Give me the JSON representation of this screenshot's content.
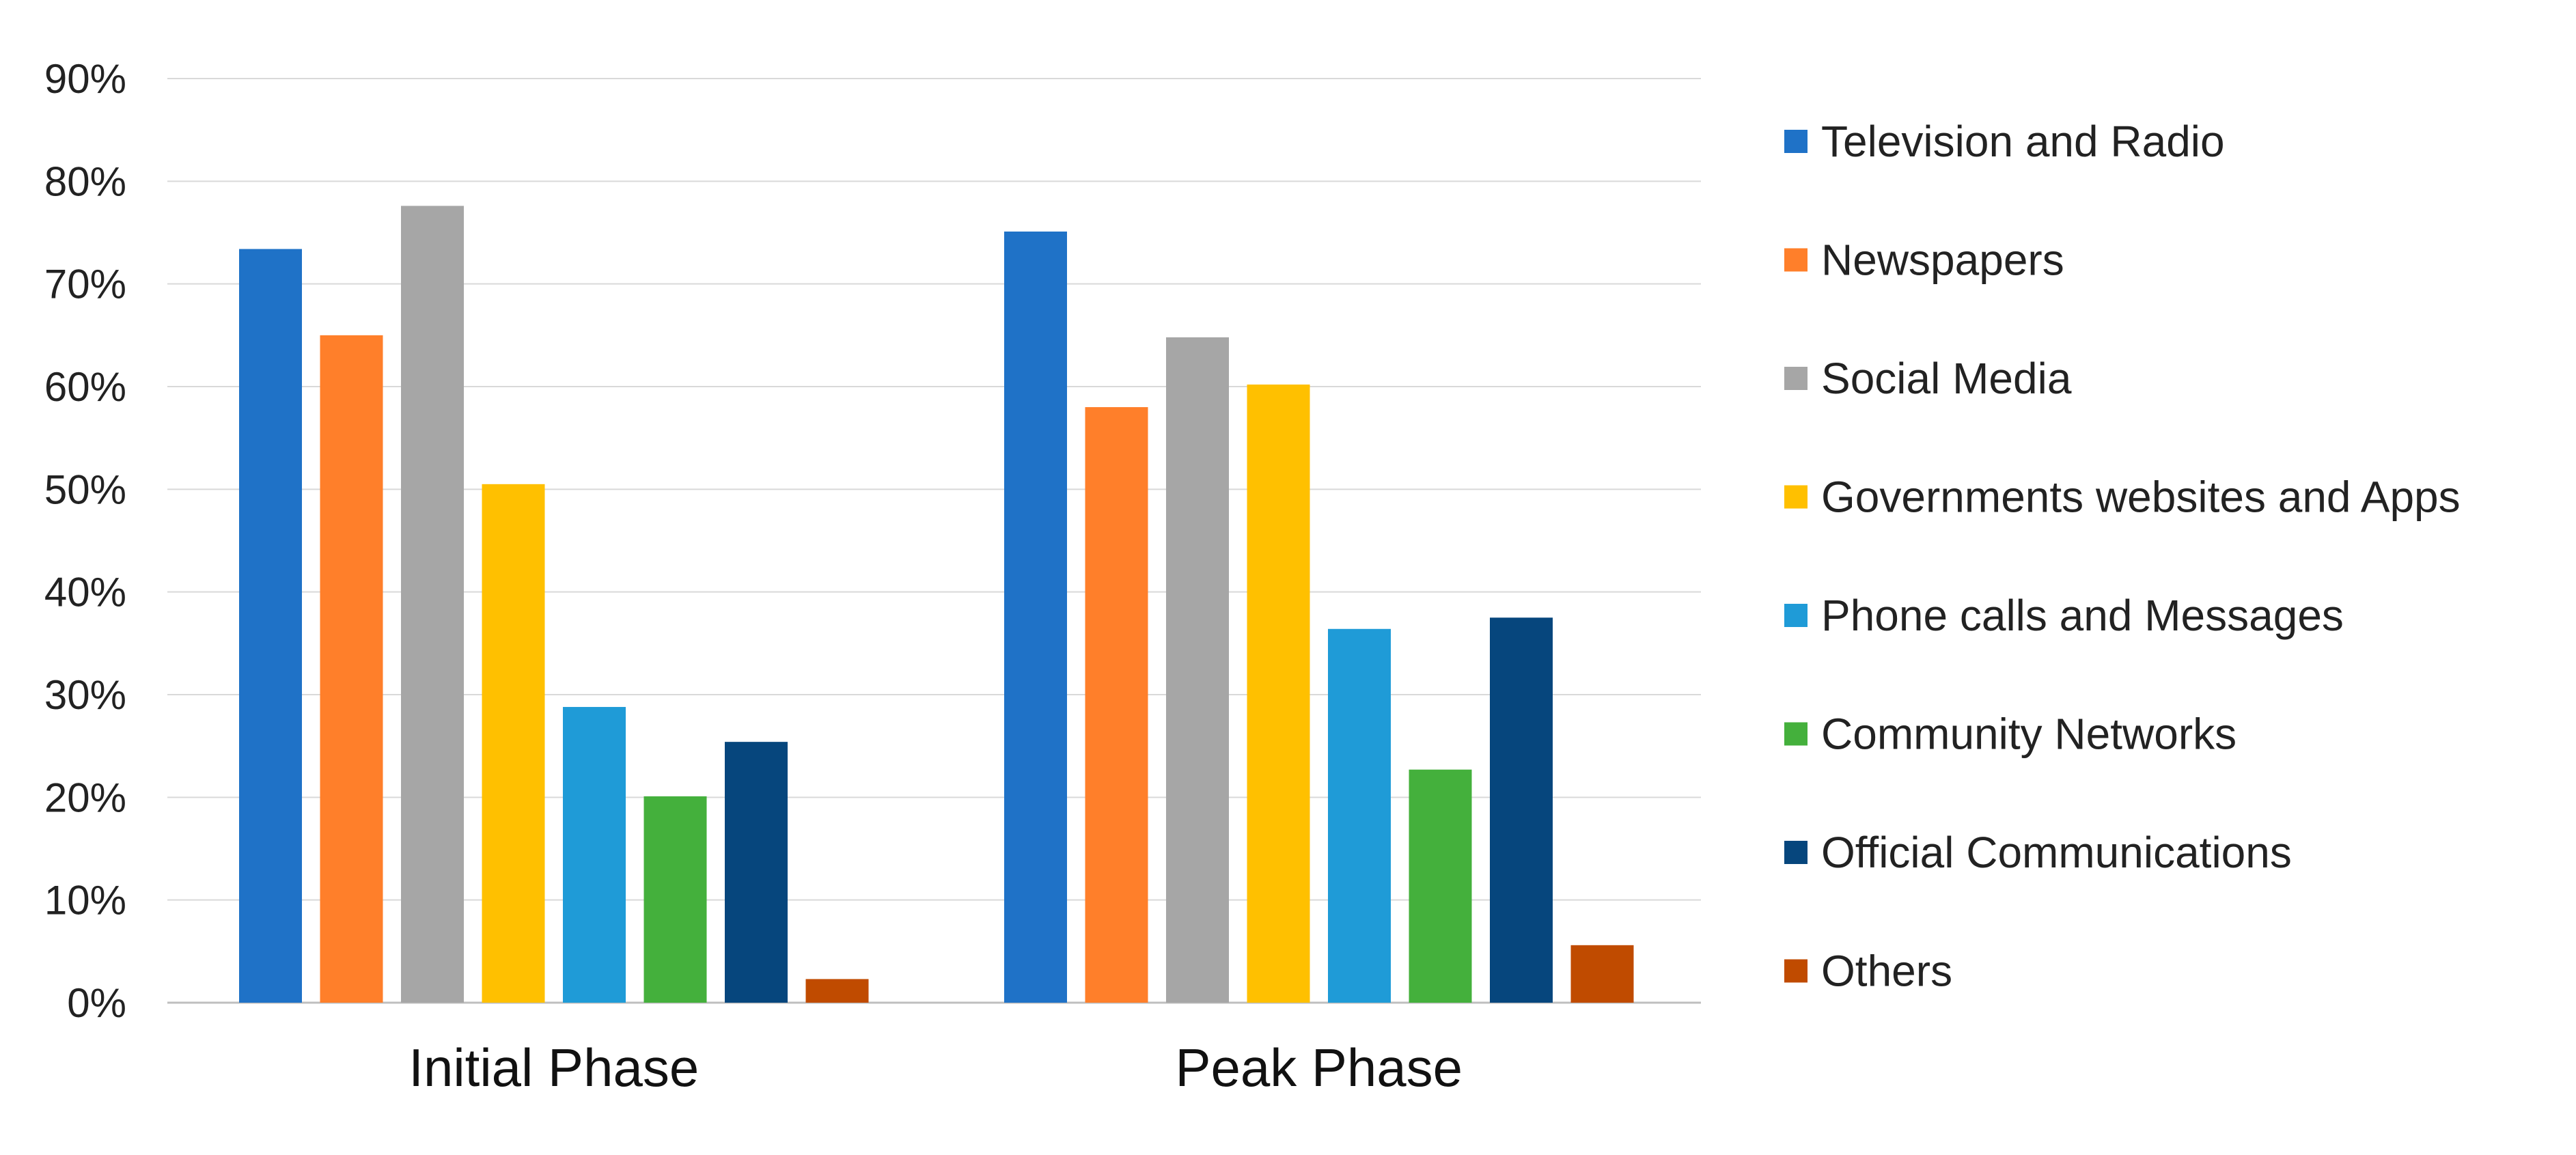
{
  "chart_data": {
    "type": "bar",
    "title": "",
    "xlabel": "",
    "ylabel": "",
    "ylim": [
      0,
      0.9
    ],
    "y_ticks": [
      "0%",
      "10%",
      "20%",
      "30%",
      "40%",
      "50%",
      "60%",
      "70%",
      "80%",
      "90%"
    ],
    "y_tick_values": [
      0,
      0.1,
      0.2,
      0.3,
      0.4,
      0.5,
      0.6,
      0.7,
      0.8,
      0.9
    ],
    "grid": "horizontal",
    "legend_position": "right",
    "categories": [
      "Initial Phase",
      "Peak Phase"
    ],
    "series": [
      {
        "name": "Television and Radio",
        "color": "#1f72c7",
        "values": [
          0.734,
          0.751
        ]
      },
      {
        "name": "Newspapers",
        "color": "#ff7f2a",
        "values": [
          0.65,
          0.58
        ]
      },
      {
        "name": "Social Media",
        "color": "#a6a6a6",
        "values": [
          0.776,
          0.648
        ]
      },
      {
        "name": "Governments websites and Apps",
        "color": "#ffc000",
        "values": [
          0.505,
          0.602
        ]
      },
      {
        "name": "Phone calls and Messages",
        "color": "#1f9bd7",
        "values": [
          0.288,
          0.364
        ]
      },
      {
        "name": "Community Networks",
        "color": "#44b03c",
        "values": [
          0.201,
          0.227
        ]
      },
      {
        "name": "Official Communications",
        "color": "#06467d",
        "values": [
          0.254,
          0.375
        ]
      },
      {
        "name": "Others",
        "color": "#c04b00",
        "values": [
          0.023,
          0.056
        ]
      }
    ]
  }
}
